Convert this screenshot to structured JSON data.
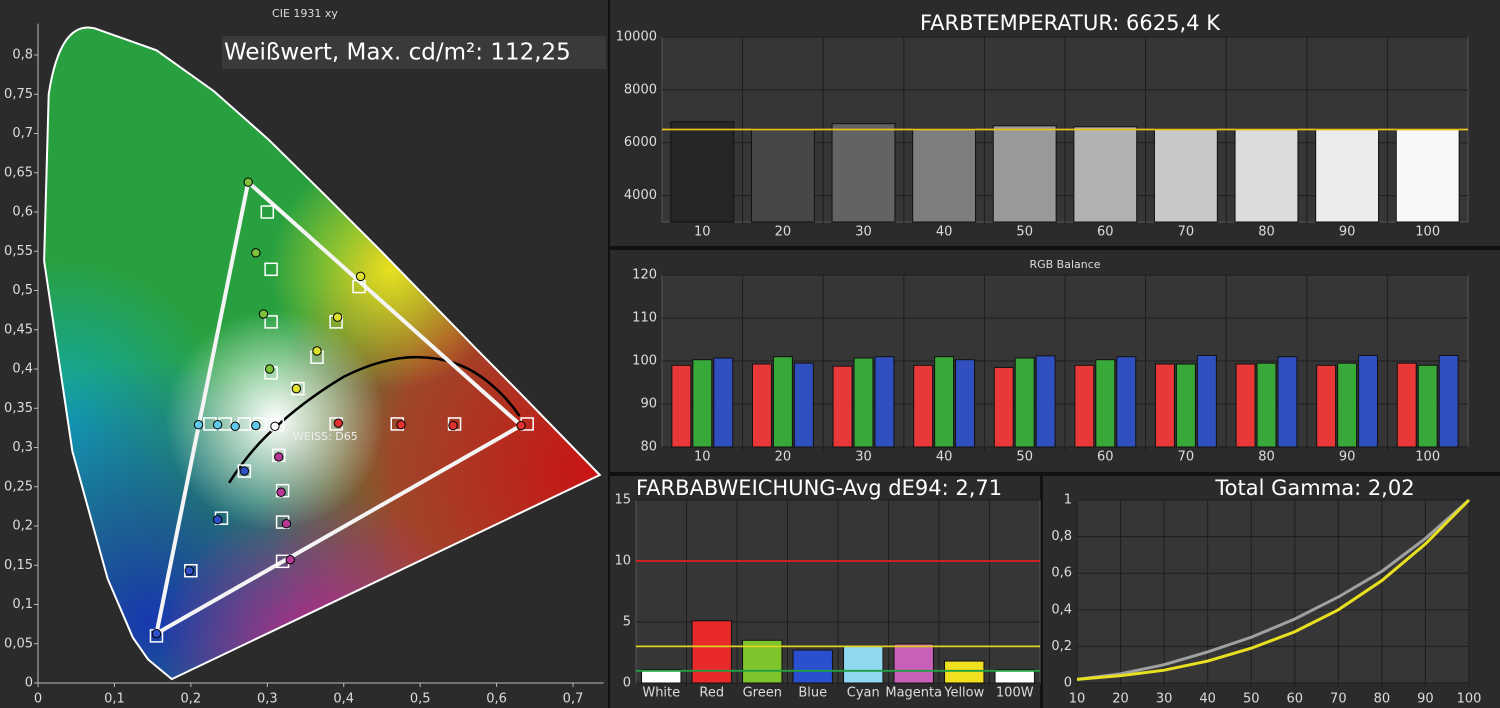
{
  "chart_data": [
    {
      "type": "scatter",
      "title": "CIE 1931 xy",
      "annotations": [
        "Weißwert, Max. cd/m²: 112,25",
        "WEISS: D65"
      ],
      "xlim": [
        0,
        0.74
      ],
      "ylim": [
        0,
        0.84
      ],
      "xticks": [
        0,
        {
          "value": 0.1,
          "label": "0,1"
        },
        {
          "value": 0.2,
          "label": "0,2"
        },
        {
          "value": 0.3,
          "label": "0,3"
        },
        {
          "value": 0.4,
          "label": "0,4"
        },
        {
          "value": 0.5,
          "label": "0,5"
        },
        {
          "value": 0.6,
          "label": "0,6"
        },
        {
          "value": 0.7,
          "label": "0,7"
        }
      ],
      "yticks": [
        0,
        {
          "value": 0.05,
          "label": "0,05"
        },
        {
          "value": 0.1,
          "label": "0,1"
        },
        {
          "value": 0.15,
          "label": "0,15"
        },
        {
          "value": 0.2,
          "label": "0,2"
        },
        {
          "value": 0.25,
          "label": "0,25"
        },
        {
          "value": 0.3,
          "label": "0,3"
        },
        {
          "value": 0.35,
          "label": "0,35"
        },
        {
          "value": 0.4,
          "label": "0,4"
        },
        {
          "value": 0.45,
          "label": "0,45"
        },
        {
          "value": 0.5,
          "label": "0,5"
        },
        {
          "value": 0.55,
          "label": "0,55"
        },
        {
          "value": 0.6,
          "label": "0,6"
        },
        {
          "value": 0.65,
          "label": "0,65"
        },
        {
          "value": 0.7,
          "label": "0,7"
        },
        {
          "value": 0.75,
          "label": "0,75"
        },
        {
          "value": 0.8,
          "label": "0,8"
        }
      ],
      "series": [
        {
          "marker": "square",
          "color": "#ffffff",
          "x": [
            0.64,
            0.545,
            0.47,
            0.39,
            0.3,
            0.305,
            0.305,
            0.305,
            0.155,
            0.2,
            0.24,
            0.27,
            0.42,
            0.39,
            0.365,
            0.34,
            0.32,
            0.32,
            0.32,
            0.315,
            0.225,
            0.245,
            0.27,
            0.29,
            0.313
          ],
          "values": [
            0.33,
            0.33,
            0.33,
            0.33,
            0.6,
            0.527,
            0.46,
            0.395,
            0.06,
            0.143,
            0.21,
            0.27,
            0.505,
            0.46,
            0.415,
            0.375,
            0.155,
            0.205,
            0.245,
            0.29,
            0.33,
            0.33,
            0.33,
            0.33,
            0.329
          ]
        },
        {
          "marker": "circle",
          "x": [
            0.632,
            0.543,
            0.475,
            0.393,
            0.275,
            0.285,
            0.295,
            0.303,
            0.155,
            0.198,
            0.235,
            0.27,
            0.422,
            0.392,
            0.365,
            0.338,
            0.33,
            0.325,
            0.318,
            0.315,
            0.21,
            0.235,
            0.258,
            0.285,
            0.31
          ],
          "values": [
            0.328,
            0.328,
            0.329,
            0.331,
            0.638,
            0.548,
            0.47,
            0.4,
            0.063,
            0.143,
            0.208,
            0.27,
            0.518,
            0.466,
            0.423,
            0.375,
            0.157,
            0.203,
            0.243,
            0.288,
            0.329,
            0.329,
            0.327,
            0.328,
            0.327
          ],
          "colors": [
            "#e03030",
            "#e03030",
            "#e03030",
            "#e03030",
            "#7cc23a",
            "#7cc23a",
            "#7cc23a",
            "#7cc23a",
            "#3050c8",
            "#3050c8",
            "#3050c8",
            "#3050c8",
            "#e0e030",
            "#e0e030",
            "#e0e030",
            "#e0e030",
            "#b83898",
            "#b83898",
            "#b83898",
            "#b83898",
            "#60c8e8",
            "#60c8e8",
            "#60c8e8",
            "#60c8e8",
            "#ffffff"
          ]
        }
      ]
    },
    {
      "type": "bar",
      "title": "FARBTEMPERATUR: 6625,4 K",
      "categories": [
        "10",
        "20",
        "30",
        "40",
        "50",
        "60",
        "70",
        "80",
        "90",
        "100"
      ],
      "values": [
        6790,
        6530,
        6720,
        6530,
        6640,
        6600,
        6530,
        6530,
        6530,
        6530
      ],
      "colors": [
        "#262626",
        "#474747",
        "#636363",
        "#7e7e7e",
        "#999999",
        "#b2b2b2",
        "#c8c8c8",
        "#dcdcdc",
        "#ececec",
        "#f8f8f8"
      ],
      "ylim": [
        3000,
        10000
      ],
      "yticks": [
        4000,
        6000,
        8000,
        10000
      ],
      "reference_lines": [
        {
          "value": 6500,
          "color": "#e8c020"
        }
      ],
      "grid": true
    },
    {
      "type": "bar",
      "title": "RGB Balance",
      "categories": [
        "10",
        "20",
        "30",
        "40",
        "50",
        "60",
        "70",
        "80",
        "90",
        "100"
      ],
      "series": [
        {
          "color": "#e83838",
          "values": [
            99,
            99.3,
            98.8,
            99,
            98.5,
            99,
            99.3,
            99.3,
            99,
            99.5
          ]
        },
        {
          "color": "#38a838",
          "values": [
            100.3,
            101,
            100.7,
            101,
            100.7,
            100.3,
            99.3,
            99.5,
            99.5,
            99
          ]
        },
        {
          "color": "#3050c0",
          "values": [
            100.7,
            99.5,
            101,
            100.3,
            101.2,
            101,
            101.3,
            101,
            101.3,
            101.3
          ]
        }
      ],
      "ylim": [
        80,
        120
      ],
      "yticks": [
        80,
        90,
        100,
        110,
        120
      ],
      "grid": true
    },
    {
      "type": "bar",
      "title": "FARBABWEICHUNG-Avg dE94: 2,71",
      "categories": [
        "White",
        "Red",
        "Green",
        "Blue",
        "Cyan",
        "Magenta",
        "Yellow",
        "100W"
      ],
      "values": [
        1.1,
        5.1,
        3.5,
        2.7,
        3.0,
        3.2,
        1.8,
        1.1
      ],
      "colors": [
        "#ffffff",
        "#e82a2a",
        "#7ec42c",
        "#2a50d0",
        "#90d8f0",
        "#c860b8",
        "#f0e020",
        "#ffffff"
      ],
      "ylim": [
        0,
        15
      ],
      "yticks": [
        0,
        5,
        10,
        15
      ],
      "reference_lines": [
        {
          "value": 10,
          "color": "#e02020"
        },
        {
          "value": 3,
          "color": "#e0d020"
        },
        {
          "value": 1,
          "color": "#20a040"
        }
      ],
      "grid": true
    },
    {
      "type": "line",
      "title": "Total Gamma: 2,02",
      "x": [
        10,
        20,
        30,
        40,
        50,
        60,
        70,
        80,
        90,
        100
      ],
      "series": [
        {
          "color": "#a0a0a0",
          "values": [
            0.02,
            0.05,
            0.1,
            0.17,
            0.25,
            0.35,
            0.47,
            0.61,
            0.79,
            1.0
          ]
        },
        {
          "color": "#e8e020",
          "values": [
            0.02,
            0.04,
            0.07,
            0.12,
            0.19,
            0.28,
            0.4,
            0.56,
            0.76,
            1.0
          ]
        }
      ],
      "xlim": [
        10,
        100
      ],
      "ylim": [
        0,
        1
      ],
      "xticks": [
        10,
        20,
        30,
        40,
        50,
        60,
        70,
        80,
        90,
        100
      ],
      "yticks": [
        0,
        {
          "value": 0.2,
          "label": "0,2"
        },
        {
          "value": 0.4,
          "label": "0,4"
        },
        {
          "value": 0.6,
          "label": "0,6"
        },
        {
          "value": 0.8,
          "label": "0,8"
        },
        1
      ],
      "grid": true
    }
  ]
}
